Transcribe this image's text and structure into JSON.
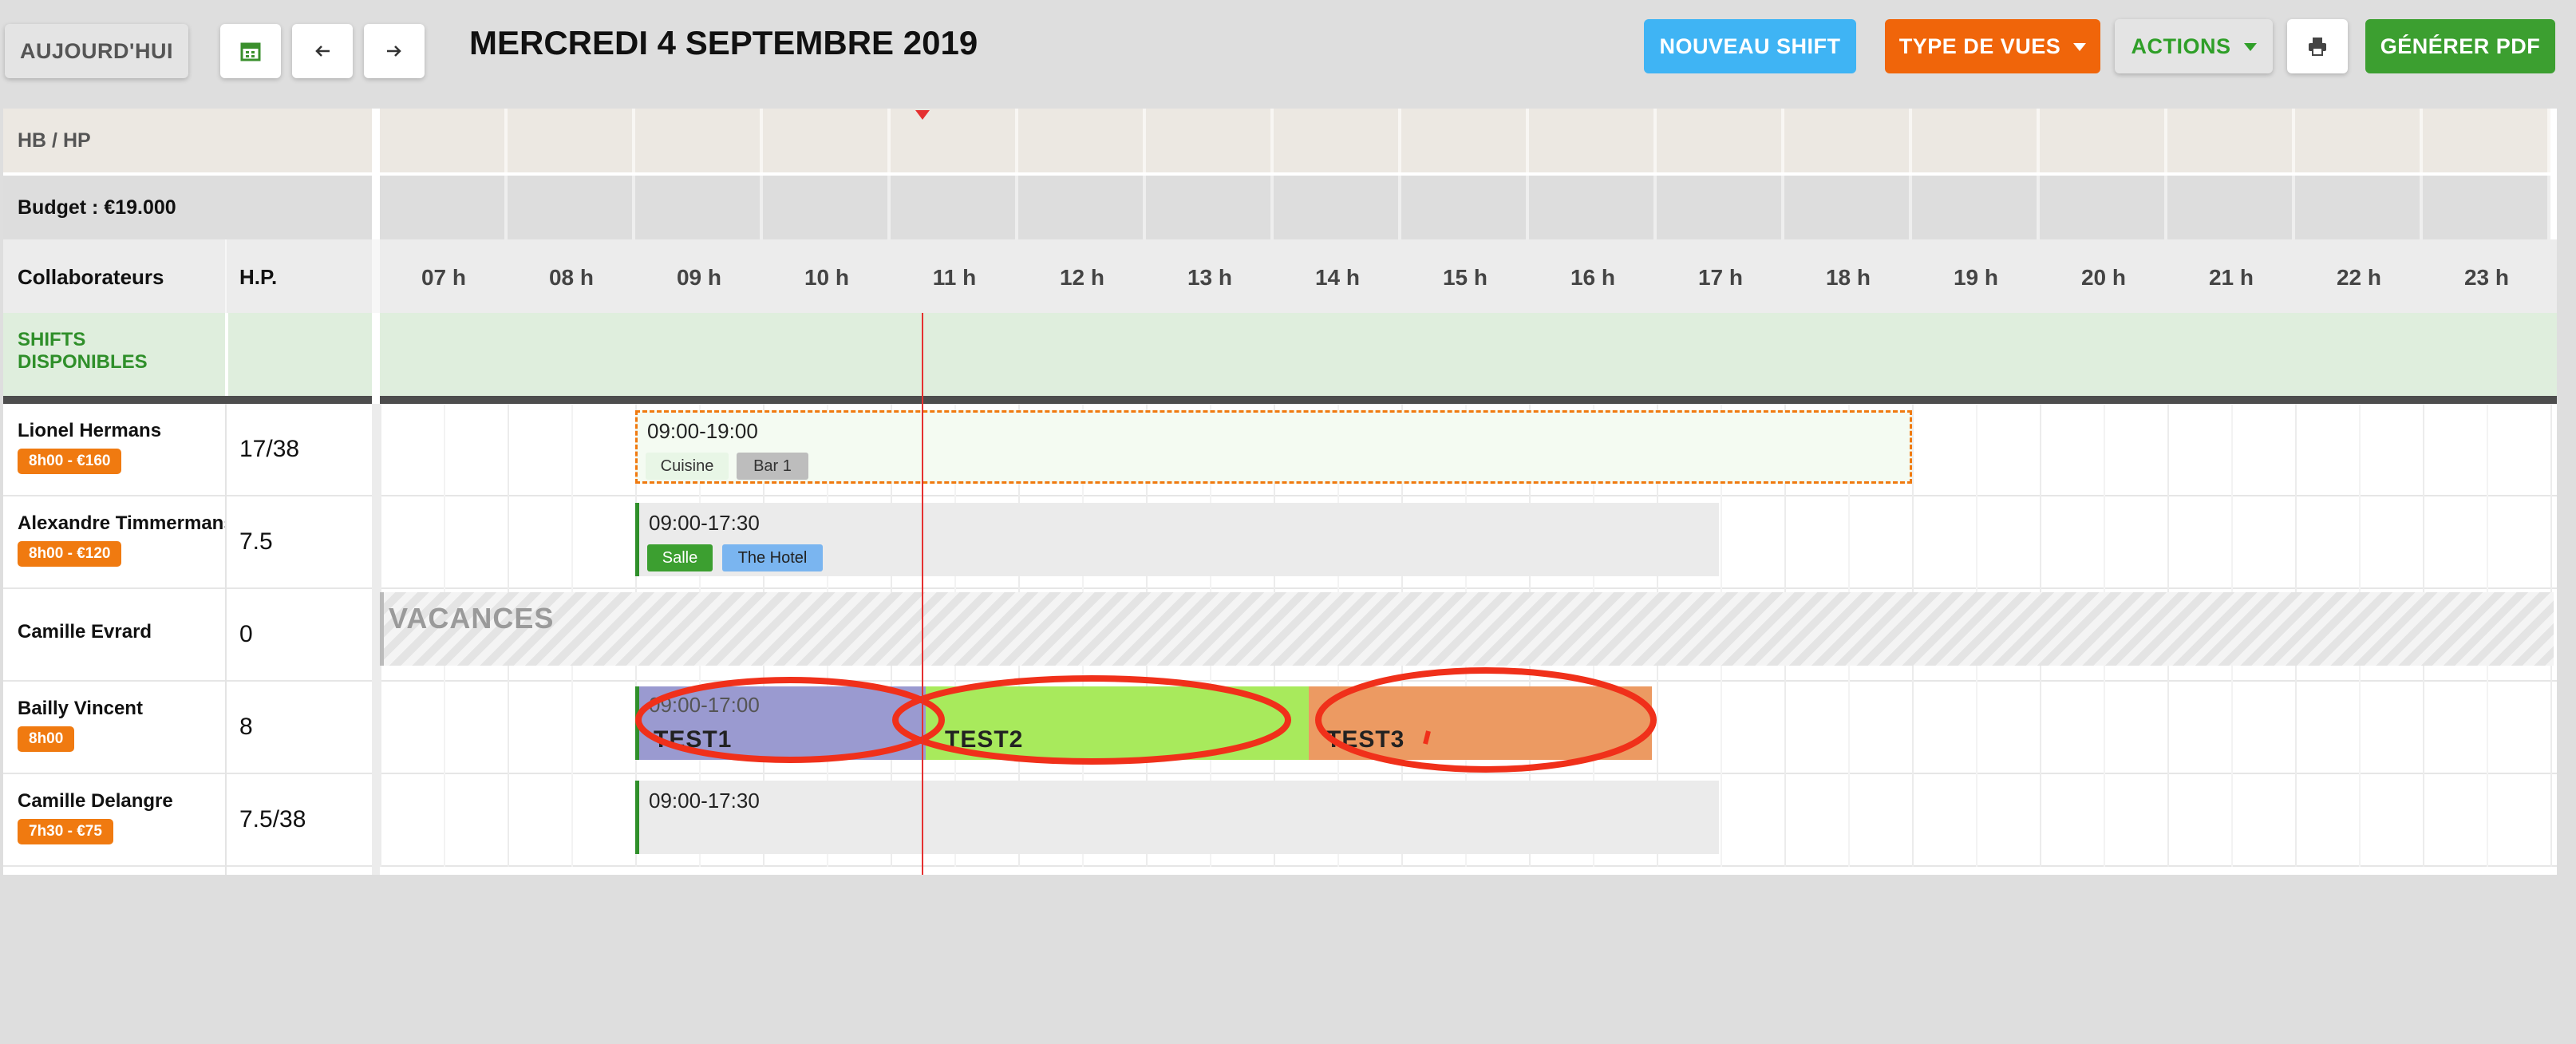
{
  "toolbar": {
    "today_label": "AUJOURD'HUI",
    "calendar_icon": "calendar-icon",
    "prev_icon": "arrow-left-icon",
    "next_icon": "arrow-right-icon",
    "date_title": "MERCREDI 4 SEPTEMBRE 2019",
    "new_shift_label": "NOUVEAU SHIFT",
    "view_types_label": "TYPE DE VUES",
    "actions_label": "ACTIONS",
    "print_icon": "printer-icon",
    "pdf_label": "GÉNÉRER PDF",
    "colors": {
      "new_shift": "#3fb4f4",
      "view_types": "#f0650a",
      "pdf": "#3c9f30",
      "actions_text": "#2f9f28"
    }
  },
  "planning": {
    "hbhp_label": "HB / HP",
    "budget_label": "Budget : €19.000",
    "collab_header": "Collaborateurs",
    "hp_header": "H.P.",
    "hours": [
      "07 h",
      "08 h",
      "09 h",
      "10 h",
      "11 h",
      "12 h",
      "13 h",
      "14 h",
      "15 h",
      "16 h",
      "17 h",
      "18 h",
      "19 h",
      "20 h",
      "21 h",
      "22 h",
      "23 h"
    ],
    "available_shifts_label_1": "SHIFTS",
    "available_shifts_label_2": "DISPONIBLES",
    "now_marker_color": "#e53030"
  },
  "employees": [
    {
      "name": "Lionel Hermans",
      "badge": "8h00 - €160",
      "hp": "17/38",
      "shift_time": "09:00-19:00",
      "tags": [
        "Cuisine",
        "Bar 1"
      ]
    },
    {
      "name": "Alexandre Timmermans",
      "badge": "8h00 - €120",
      "hp": "7.5",
      "shift_time": "09:00-17:30",
      "tags": [
        "Salle",
        "The Hotel"
      ]
    },
    {
      "name": "Camille Evrard",
      "hp": "0",
      "absence_label": "VACANCES"
    },
    {
      "name": "Bailly Vincent",
      "badge": "8h00",
      "hp": "8",
      "shift_time": "09:00-17:00",
      "segments": [
        "TEST1",
        "TEST2",
        "TEST3"
      ]
    },
    {
      "name": "Camille Delangre",
      "badge": "7h30 - €75",
      "hp": "7.5/38",
      "shift_time": "09:00-17:30"
    }
  ]
}
